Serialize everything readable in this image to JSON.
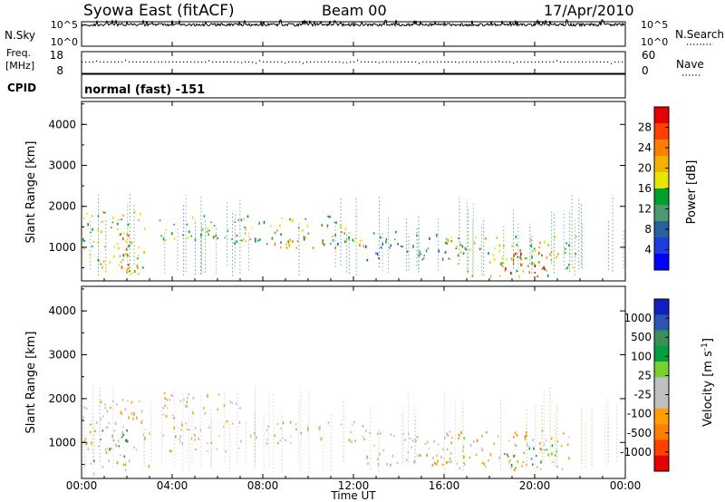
{
  "header": {
    "title": "Syowa East (fitACF)",
    "beam": "Beam 00",
    "date": "17/Apr/2010"
  },
  "nsky_panel": {
    "label_left": "N.Sky",
    "label_right": "N.Search",
    "ticks_left": [
      "10^5",
      "10^0"
    ],
    "ticks_right": [
      "10^5",
      "10^0"
    ],
    "value_level": 0.88
  },
  "freq_panel": {
    "label_left_line1": "Freq.",
    "label_left_line2": "[MHz]",
    "label_right": "Nave",
    "ticks_left": [
      "18",
      "8"
    ],
    "ticks_right": [
      "60",
      "0"
    ],
    "value_level": 0.55
  },
  "cpid_panel": {
    "label": "CPID",
    "text": "normal (fast) -151"
  },
  "power_panel": {
    "ylabel": "Slant Range [km]",
    "yticks": [
      "4000",
      "3000",
      "2000",
      "1000"
    ],
    "colorbar_label": "Power [dB]",
    "colorbar_ticks": [
      "28",
      "24",
      "20",
      "16",
      "12",
      "8",
      "4"
    ],
    "colors": [
      "#e60000",
      "#ff4000",
      "#ff8000",
      "#f0b400",
      "#e6e600",
      "#00a030",
      "#4a9a70",
      "#2860a0",
      "#1f3ce0",
      "#0000ff"
    ]
  },
  "velocity_panel": {
    "ylabel": "Slant Range [km]",
    "yticks": [
      "4000",
      "3000",
      "2000",
      "1000"
    ],
    "colorbar_label": "Velocity [m s",
    "colorbar_label_sup": "-1",
    "colorbar_label_end": "]",
    "colorbar_ticks": [
      "1000",
      "500",
      "100",
      "25",
      "-25",
      "-100",
      "-500",
      "-1000"
    ],
    "colors": [
      "#1020c0",
      "#2c54b0",
      "#3b8f5a",
      "#00a040",
      "#7ad030",
      "#c0c0c0",
      "#c0c0c0",
      "#ffa000",
      "#ff8000",
      "#ff4000",
      "#e60000"
    ]
  },
  "xaxis": {
    "label": "Time UT",
    "ticks": [
      "00:00",
      "04:00",
      "08:00",
      "12:00",
      "16:00",
      "20:00",
      "00:00"
    ]
  },
  "chart_data": [
    {
      "type": "heatmap",
      "name": "power",
      "x_range_hours": [
        0,
        24
      ],
      "ylim_km": [
        180,
        4560
      ],
      "colorbar_range_db": [
        0,
        32
      ],
      "echo_regions": [
        {
          "t_start": 0.0,
          "t_end": 2.8,
          "r_min": 300,
          "r_max": 1900,
          "value": 18
        },
        {
          "t_start": 1.6,
          "t_end": 2.8,
          "r_min": 400,
          "r_max": 1400,
          "value": 26
        },
        {
          "t_start": 3.4,
          "t_end": 12.5,
          "r_min": 1100,
          "r_max": 1800,
          "value": 14
        },
        {
          "t_start": 6.5,
          "t_end": 12.5,
          "r_min": 1000,
          "r_max": 1400,
          "value": 20
        },
        {
          "t_start": 12.5,
          "t_end": 17.0,
          "r_min": 700,
          "r_max": 1400,
          "value": 10
        },
        {
          "t_start": 16.0,
          "t_end": 21.8,
          "r_min": 300,
          "r_max": 1300,
          "value": 18
        },
        {
          "t_start": 18.5,
          "t_end": 21.0,
          "r_min": 300,
          "r_max": 900,
          "value": 27
        }
      ]
    },
    {
      "type": "heatmap",
      "name": "velocity",
      "x_range_hours": [
        0,
        24
      ],
      "ylim_km": [
        180,
        4560
      ],
      "colorbar_range_ms": [
        -1000,
        1000
      ],
      "echo_regions": [
        {
          "t_start": 0.0,
          "t_end": 3.0,
          "r_min": 300,
          "r_max": 2000,
          "value": -150
        },
        {
          "t_start": 0.5,
          "t_end": 2.0,
          "r_min": 500,
          "r_max": 1300,
          "value": 400
        },
        {
          "t_start": 3.5,
          "t_end": 7.0,
          "r_min": 800,
          "r_max": 2200,
          "value": -200
        },
        {
          "t_start": 7.0,
          "t_end": 12.5,
          "r_min": 1000,
          "r_max": 1500,
          "value": 0
        },
        {
          "t_start": 12.5,
          "t_end": 17.0,
          "r_min": 500,
          "r_max": 1300,
          "value": 0
        },
        {
          "t_start": 15.5,
          "t_end": 21.5,
          "r_min": 400,
          "r_max": 1300,
          "value": -300
        },
        {
          "t_start": 18.0,
          "t_end": 21.0,
          "r_min": 500,
          "r_max": 1000,
          "value": 300
        }
      ]
    }
  ]
}
